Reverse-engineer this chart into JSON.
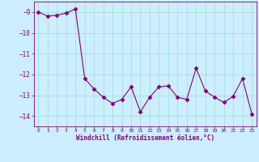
{
  "x": [
    0,
    1,
    2,
    3,
    4,
    5,
    6,
    7,
    8,
    9,
    10,
    11,
    12,
    13,
    14,
    15,
    16,
    17,
    18,
    19,
    20,
    21,
    22,
    23
  ],
  "y": [
    -9.0,
    -9.2,
    -9.15,
    -9.05,
    -8.85,
    -12.2,
    -12.7,
    -13.1,
    -13.4,
    -13.2,
    -12.6,
    -13.8,
    -13.1,
    -12.6,
    -12.55,
    -13.1,
    -13.2,
    -11.7,
    -12.8,
    -13.1,
    -13.35,
    -13.05,
    -12.2,
    -13.9
  ],
  "xlabel": "Windchill (Refroidissement éolien,°C)",
  "ylim": [
    -14.5,
    -8.5
  ],
  "xlim": [
    -0.5,
    23.5
  ],
  "yticks": [
    -9,
    -10,
    -11,
    -12,
    -13,
    -14
  ],
  "ytick_labels": [
    "-9",
    "-10",
    "-11",
    "-12",
    "-13",
    "-14"
  ],
  "xticks": [
    0,
    1,
    2,
    3,
    4,
    5,
    6,
    7,
    8,
    9,
    10,
    11,
    12,
    13,
    14,
    15,
    16,
    17,
    18,
    19,
    20,
    21,
    22,
    23
  ],
  "line_color": "#800080",
  "marker": "D",
  "marker_size": 2.5,
  "bg_color": "#cceeff",
  "grid_color": "#aadddd",
  "label_color": "#800080",
  "tick_color": "#800080",
  "font_family": "monospace"
}
